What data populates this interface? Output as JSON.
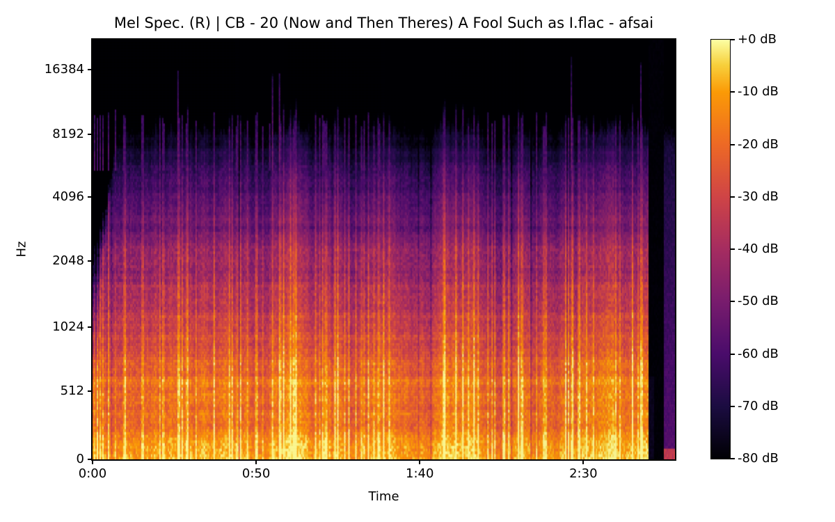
{
  "chart_data": {
    "type": "heatmap",
    "subtype": "mel_spectrogram",
    "title": "Mel Spec. (R) | CB - 20 (Now and Then Theres) A Fool Such as I.flac - afsai",
    "xlabel": "Time",
    "ylabel": "Hz",
    "x_axis": {
      "range_seconds": [
        0,
        178
      ],
      "ticks": [
        {
          "label": "0:00",
          "seconds": 0
        },
        {
          "label": "0:50",
          "seconds": 50
        },
        {
          "label": "1:40",
          "seconds": 100
        },
        {
          "label": "2:30",
          "seconds": 150
        }
      ]
    },
    "y_axis": {
      "scale": "mel",
      "range_hz": [
        0,
        22050
      ],
      "ticks": [
        {
          "label": "16384",
          "hz": 16384
        },
        {
          "label": "8192",
          "hz": 8192
        },
        {
          "label": "4096",
          "hz": 4096
        },
        {
          "label": "2048",
          "hz": 2048
        },
        {
          "label": "1024",
          "hz": 1024
        },
        {
          "label": "512",
          "hz": 512
        },
        {
          "label": "0",
          "hz": 0
        }
      ]
    },
    "colorbar": {
      "colormap": "inferno",
      "range_db": [
        -80,
        0
      ],
      "ticks": [
        "+0 dB",
        "-10 dB",
        "-20 dB",
        "-30 dB",
        "-40 dB",
        "-50 dB",
        "-60 dB",
        "-70 dB",
        "-80 dB"
      ],
      "stops": [
        {
          "t": 0.0,
          "color": "#000004"
        },
        {
          "t": 0.125,
          "color": "#1b0c41"
        },
        {
          "t": 0.25,
          "color": "#4a0c6b"
        },
        {
          "t": 0.375,
          "color": "#781c6d"
        },
        {
          "t": 0.5,
          "color": "#a52c60"
        },
        {
          "t": 0.625,
          "color": "#cf4446"
        },
        {
          "t": 0.75,
          "color": "#ed6925"
        },
        {
          "t": 0.875,
          "color": "#fb9a06"
        },
        {
          "t": 0.94,
          "color": "#f7d03c"
        },
        {
          "t": 1.0,
          "color": "#fcffa4"
        }
      ]
    },
    "content": {
      "duration_of_audio_seconds": 170,
      "silence_gap_seconds": [
        170,
        174.4
      ],
      "tail_noise_band_seconds": [
        174.4,
        178
      ],
      "intro_lowpass_until_seconds": 8,
      "high_rolloff_hz": 8300,
      "transient_cluster_centers_seconds": [
        25,
        70,
        141
      ],
      "spectral_profile_db": [
        [
          0,
          -9
        ],
        [
          80,
          -10
        ],
        [
          180,
          -13
        ],
        [
          300,
          -16
        ],
        [
          450,
          -18
        ],
        [
          600,
          -20
        ],
        [
          800,
          -27
        ],
        [
          1000,
          -32
        ],
        [
          1300,
          -36
        ],
        [
          1700,
          -40
        ],
        [
          2200,
          -43
        ],
        [
          3000,
          -52
        ],
        [
          4000,
          -58
        ],
        [
          5000,
          -63
        ],
        [
          6500,
          -70
        ],
        [
          7800,
          -75
        ],
        [
          8800,
          -79
        ],
        [
          22050,
          -80
        ]
      ],
      "noise_seed": 42
    }
  }
}
